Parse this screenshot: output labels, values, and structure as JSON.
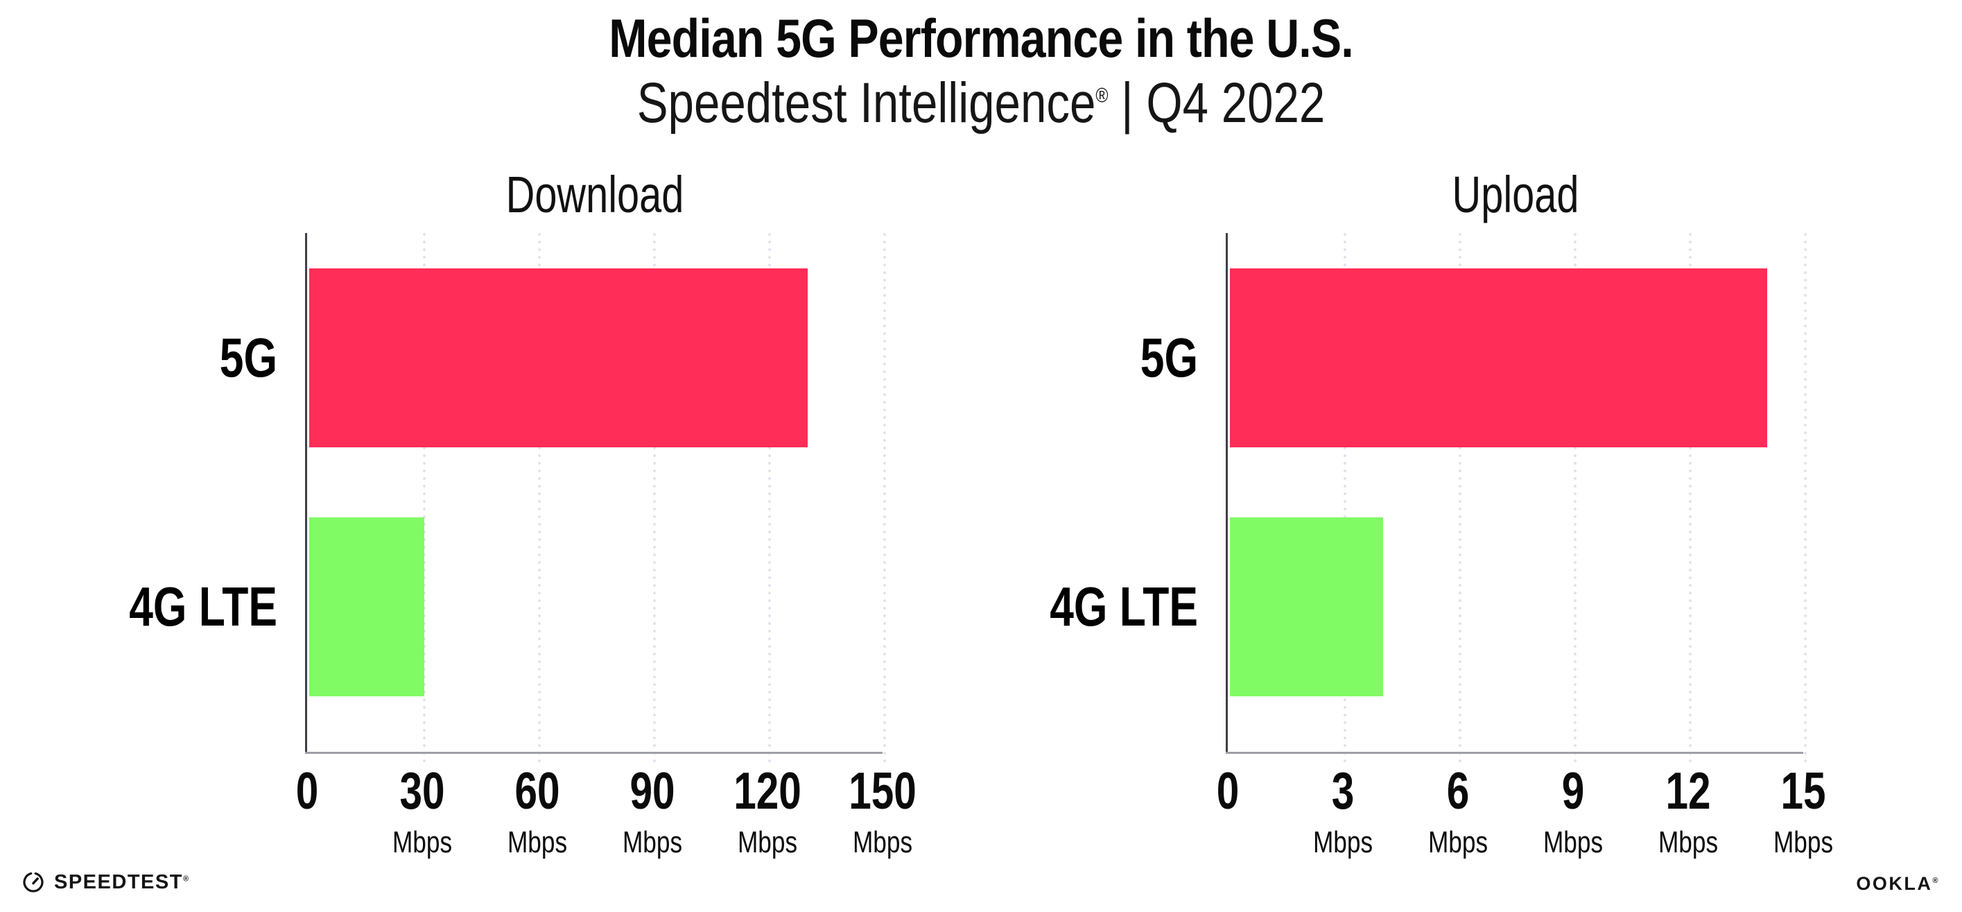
{
  "header": {
    "title": "Median 5G Performance in the U.S.",
    "subtitle_brand": "Speedtest Intelligence",
    "subtitle_reg_mark": "®",
    "subtitle_rest": " | Q4 2022"
  },
  "colors": {
    "bar_5g": "#ff2d58",
    "bar_4g_lte": "#80fb64",
    "gridline": "#e3e3ed",
    "y_axis": "#3f3f46",
    "x_axis": "#9ea0a8",
    "text": "#0b0b0b"
  },
  "chart_data": [
    {
      "type": "bar",
      "orientation": "horizontal",
      "title": "Download",
      "categories": [
        "5G",
        "4G LTE"
      ],
      "values": [
        130,
        30
      ],
      "unit": "Mbps",
      "xlim": [
        0,
        150
      ],
      "xticks": [
        0,
        30,
        60,
        90,
        120,
        150
      ],
      "bar_colors": [
        "#ff2d58",
        "#80fb64"
      ],
      "grid": "vertical-dotted",
      "legend": "none"
    },
    {
      "type": "bar",
      "orientation": "horizontal",
      "title": "Upload",
      "categories": [
        "5G",
        "4G LTE"
      ],
      "values": [
        14,
        4
      ],
      "unit": "Mbps",
      "xlim": [
        0,
        15
      ],
      "xticks": [
        0,
        3,
        6,
        9,
        12,
        15
      ],
      "bar_colors": [
        "#ff2d58",
        "#80fb64"
      ],
      "grid": "vertical-dotted",
      "legend": "none"
    }
  ],
  "footer": {
    "speedtest_label": "SPEEDTEST",
    "speedtest_reg_mark": "®",
    "ookla_label": "OOKLA",
    "ookla_reg_mark": "®"
  }
}
